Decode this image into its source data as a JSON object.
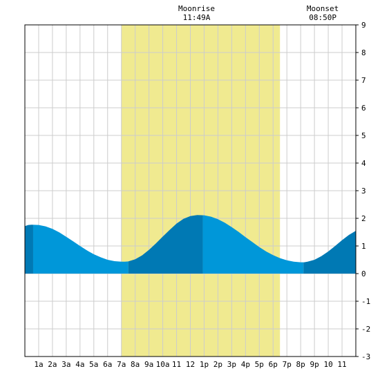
{
  "chart_data": {
    "type": "area",
    "x_unit": "hour of day",
    "xlim": [
      0,
      24
    ],
    "ylim": [
      -3,
      9
    ],
    "y_ticks": [
      -3,
      -2,
      -1,
      0,
      1,
      2,
      3,
      4,
      5,
      6,
      7,
      8,
      9
    ],
    "x_tick_labels": [
      {
        "x": 1,
        "label": "1a"
      },
      {
        "x": 2,
        "label": "2a"
      },
      {
        "x": 3,
        "label": "3a"
      },
      {
        "x": 4,
        "label": "4a"
      },
      {
        "x": 5,
        "label": "5a"
      },
      {
        "x": 6,
        "label": "6a"
      },
      {
        "x": 7,
        "label": "7a"
      },
      {
        "x": 8,
        "label": "8a"
      },
      {
        "x": 9,
        "label": "9a"
      },
      {
        "x": 10,
        "label": "10a"
      },
      {
        "x": 11,
        "label": "11"
      },
      {
        "x": 12,
        "label": "12"
      },
      {
        "x": 13,
        "label": "1p"
      },
      {
        "x": 14,
        "label": "2p"
      },
      {
        "x": 15,
        "label": "3p"
      },
      {
        "x": 16,
        "label": "4p"
      },
      {
        "x": 17,
        "label": "5p"
      },
      {
        "x": 18,
        "label": "6p"
      },
      {
        "x": 19,
        "label": "7p"
      },
      {
        "x": 20,
        "label": "8p"
      },
      {
        "x": 21,
        "label": "9p"
      },
      {
        "x": 22,
        "label": "10"
      },
      {
        "x": 23,
        "label": "11"
      }
    ],
    "daylight": {
      "start": 7.0,
      "end": 18.5
    },
    "tide_series": {
      "x": [
        0,
        0.25,
        0.5,
        1,
        1.5,
        2,
        2.5,
        3,
        3.5,
        4,
        4.5,
        5,
        5.5,
        6,
        6.5,
        7,
        7.25,
        7.5,
        8,
        8.5,
        9,
        9.5,
        10,
        10.5,
        11,
        11.5,
        12,
        12.5,
        13,
        13.5,
        14,
        14.5,
        15,
        15.5,
        16,
        16.5,
        17,
        17.5,
        18,
        18.5,
        19,
        19.5,
        20,
        20.25,
        20.5,
        21,
        21.5,
        22,
        22.5,
        23,
        23.5,
        24
      ],
      "y": [
        1.72,
        1.76,
        1.77,
        1.76,
        1.71,
        1.62,
        1.49,
        1.33,
        1.17,
        1.0,
        0.84,
        0.7,
        0.59,
        0.5,
        0.45,
        0.43,
        0.43,
        0.44,
        0.52,
        0.66,
        0.86,
        1.09,
        1.34,
        1.58,
        1.81,
        1.98,
        2.08,
        2.12,
        2.11,
        2.06,
        1.97,
        1.84,
        1.68,
        1.51,
        1.32,
        1.14,
        0.96,
        0.8,
        0.67,
        0.56,
        0.48,
        0.43,
        0.41,
        0.41,
        0.43,
        0.5,
        0.63,
        0.8,
        1.0,
        1.21,
        1.4,
        1.55
      ]
    },
    "tide_bands": [
      {
        "start": 0,
        "end": 0.6,
        "shade": "dark"
      },
      {
        "start": 0.6,
        "end": 7.5,
        "shade": "light"
      },
      {
        "start": 7.5,
        "end": 12.9,
        "shade": "dark"
      },
      {
        "start": 12.9,
        "end": 20.2,
        "shade": "light"
      },
      {
        "start": 20.2,
        "end": 24,
        "shade": "dark"
      }
    ],
    "annotations": [
      {
        "x": 12.45,
        "title": "Moonrise",
        "time": "11:49A"
      },
      {
        "x": 21.6,
        "title": "Moonset",
        "time": "08:50P"
      }
    ],
    "grid": true,
    "colors": {
      "daylight": "#f0ea90",
      "tide_light": "#0097d9",
      "tide_dark": "#0079b4",
      "grid": "#cccccc",
      "frame": "#000000",
      "background": "#ffffff"
    }
  }
}
